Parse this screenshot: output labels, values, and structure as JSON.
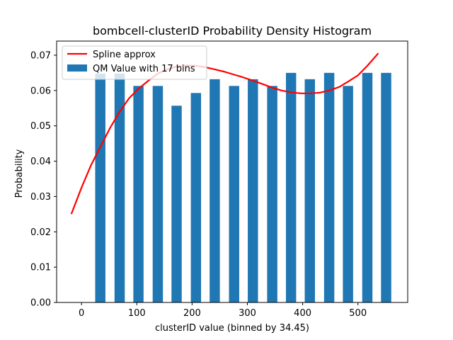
{
  "chart_data": {
    "type": "bar",
    "title": "bombcell-clusterID Probability Density Histogram",
    "xlabel": "clusterID value (binned by 34.45)",
    "ylabel": "Probability",
    "xlim": [
      -45,
      590
    ],
    "ylim": [
      0,
      0.074
    ],
    "x_ticks": [
      0,
      100,
      200,
      300,
      400,
      500
    ],
    "y_ticks": [
      0.0,
      0.01,
      0.02,
      0.03,
      0.04,
      0.05,
      0.06,
      0.07
    ],
    "bar_width": 18.5,
    "grid": false,
    "legend_position": "top-left",
    "series": [
      {
        "name": "QM Value with 17 bins",
        "kind": "bar",
        "color": "#1f77b4",
        "x": [
          34,
          69,
          103,
          138,
          172,
          207,
          241,
          276,
          310,
          345,
          379,
          413,
          448,
          482,
          517,
          551
        ],
        "values": [
          0.0648,
          0.0648,
          0.0613,
          0.0613,
          0.0557,
          0.0593,
          0.0632,
          0.0613,
          0.0632,
          0.0613,
          0.065,
          0.0632,
          0.065,
          0.0613,
          0.065,
          0.065
        ]
      },
      {
        "name": "Spline approx",
        "kind": "line",
        "color": "#ff0000",
        "x": [
          -18,
          0,
          17,
          34,
          52,
          69,
          86,
          103,
          121,
          138,
          155,
          172,
          190,
          207,
          224,
          241,
          259,
          276,
          293,
          310,
          328,
          345,
          362,
          379,
          397,
          413,
          431,
          448,
          466,
          482,
          500,
          517,
          536
        ],
        "values": [
          0.0252,
          0.0325,
          0.0388,
          0.044,
          0.0495,
          0.054,
          0.0578,
          0.0605,
          0.0628,
          0.0648,
          0.066,
          0.0668,
          0.0671,
          0.067,
          0.0666,
          0.066,
          0.0653,
          0.0645,
          0.0637,
          0.0628,
          0.0618,
          0.0608,
          0.06,
          0.0595,
          0.0592,
          0.0592,
          0.0594,
          0.06,
          0.061,
          0.0625,
          0.0643,
          0.067,
          0.0704
        ]
      }
    ],
    "legend": [
      "Spline approx",
      "QM Value with 17 bins"
    ]
  }
}
